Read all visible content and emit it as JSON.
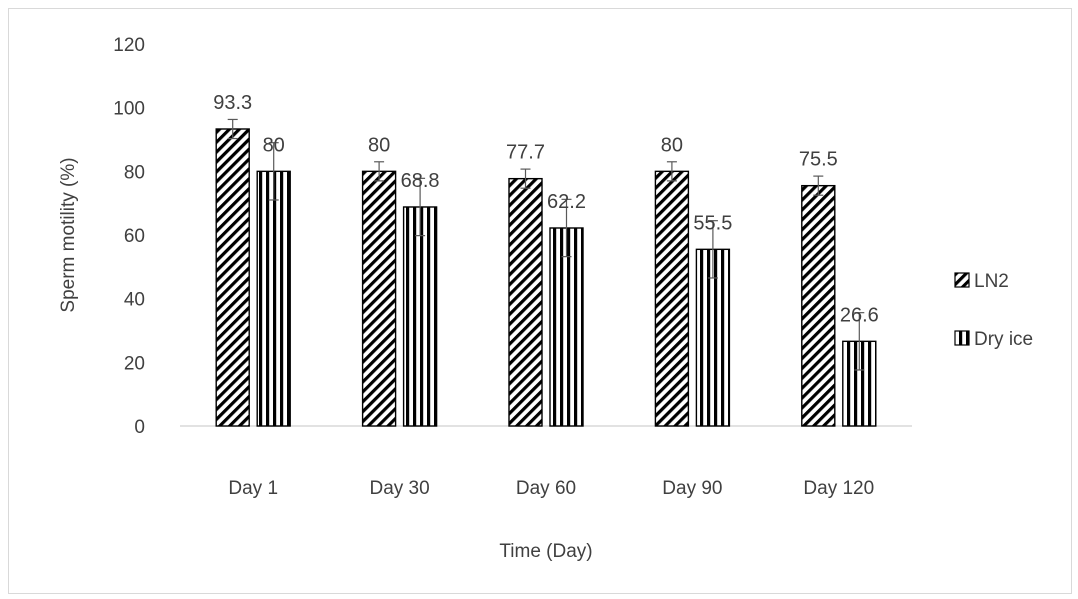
{
  "chart_data": {
    "type": "bar",
    "title": "",
    "xlabel": "Time (Day)",
    "ylabel": "Sperm motility (%)",
    "categories": [
      "Day 1",
      "Day 30",
      "Day 60",
      "Day 90",
      "Day 120"
    ],
    "series": [
      {
        "name": "LN2",
        "values": [
          93.3,
          80,
          77.7,
          80,
          75.5
        ],
        "error": [
          3,
          3,
          3,
          3,
          3
        ],
        "pattern": "diagonal-stripes"
      },
      {
        "name": "Dry ice",
        "values": [
          80,
          68.8,
          62.2,
          55.5,
          26.6
        ],
        "error": [
          9,
          9,
          9,
          9,
          9
        ],
        "pattern": "vertical-stripes"
      }
    ],
    "data_labels": [
      [
        "93.3",
        "80",
        "77.7",
        "80",
        "75.5"
      ],
      [
        "80",
        "68.8",
        "62.2",
        "55.5",
        "26.6"
      ]
    ],
    "ylim": [
      0,
      120
    ],
    "yticks": [
      "0",
      "20",
      "40",
      "60",
      "80",
      "100",
      "120"
    ],
    "grid": false,
    "legend_position": "right",
    "colors": {
      "bar_stroke": "#000000",
      "text": "#404040",
      "axis": "#d9d9d9"
    }
  }
}
